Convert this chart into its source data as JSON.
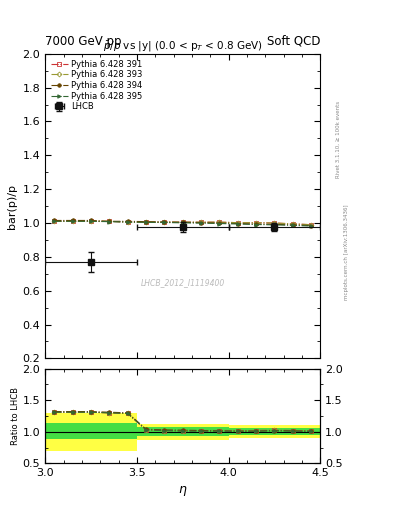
{
  "title_left": "7000 GeV pp",
  "title_right": "Soft QCD",
  "plot_title": "$\\bar{p}/p$ vs |y| (0.0 < p$_{T}$ < 0.8 GeV)",
  "ylabel_main": "bar(p)/p",
  "ylabel_ratio": "Ratio to LHCB",
  "xlabel": "$\\eta$",
  "right_label_top": "Rivet 3.1.10, ≥ 100k events",
  "right_label_bottom": "mcplots.cern.ch [arXiv:1306.3436]",
  "watermark": "LHCB_2012_I1119400",
  "xlim": [
    3.0,
    4.5
  ],
  "ylim_main": [
    0.2,
    2.0
  ],
  "ylim_ratio": [
    0.5,
    2.0
  ],
  "lhcb_data": {
    "x": [
      3.25,
      3.75,
      4.25
    ],
    "y": [
      0.77,
      0.975,
      0.975
    ],
    "xerr": [
      0.25,
      0.25,
      0.25
    ],
    "yerr": [
      0.06,
      0.03,
      0.025
    ],
    "color": "#111111",
    "label": "LHCB"
  },
  "pythia_lines": [
    {
      "label": "Pythia 6.428 391",
      "color": "#cc3333",
      "linestyle": "-.",
      "marker": "s",
      "markerfacecolor": "none",
      "x": [
        3.05,
        3.15,
        3.25,
        3.35,
        3.45,
        3.55,
        3.65,
        3.75,
        3.85,
        3.95,
        4.05,
        4.15,
        4.25,
        4.35,
        4.45
      ],
      "y": [
        1.01,
        1.01,
        1.01,
        1.01,
        1.005,
        1.005,
        1.005,
        1.005,
        1.005,
        1.005,
        1.002,
        1.002,
        1.0,
        0.995,
        0.99
      ]
    },
    {
      "label": "Pythia 6.428 393",
      "color": "#999933",
      "linestyle": "-.",
      "marker": "D",
      "markerfacecolor": "none",
      "x": [
        3.05,
        3.15,
        3.25,
        3.35,
        3.45,
        3.55,
        3.65,
        3.75,
        3.85,
        3.95,
        4.05,
        4.15,
        4.25,
        4.35,
        4.45
      ],
      "y": [
        1.01,
        1.01,
        1.01,
        1.01,
        1.005,
        1.005,
        1.005,
        1.005,
        1.005,
        1.005,
        1.002,
        1.002,
        1.0,
        0.995,
        0.99
      ]
    },
    {
      "label": "Pythia 6.428 394",
      "color": "#664400",
      "linestyle": "-.",
      "marker": "o",
      "markerfacecolor": "#664400",
      "x": [
        3.05,
        3.15,
        3.25,
        3.35,
        3.45,
        3.55,
        3.65,
        3.75,
        3.85,
        3.95,
        4.05,
        4.15,
        4.25,
        4.35,
        4.45
      ],
      "y": [
        1.015,
        1.015,
        1.015,
        1.01,
        1.01,
        1.008,
        1.006,
        1.004,
        1.002,
        1.0,
        0.997,
        0.994,
        0.992,
        0.989,
        0.985
      ]
    },
    {
      "label": "Pythia 6.428 395",
      "color": "#336633",
      "linestyle": "-.",
      "marker": ">",
      "markerfacecolor": "#336633",
      "x": [
        3.05,
        3.15,
        3.25,
        3.35,
        3.45,
        3.55,
        3.65,
        3.75,
        3.85,
        3.95,
        4.05,
        4.15,
        4.25,
        4.35,
        4.45
      ],
      "y": [
        1.01,
        1.01,
        1.01,
        1.008,
        1.005,
        1.004,
        1.003,
        1.001,
        0.999,
        0.997,
        0.994,
        0.991,
        0.989,
        0.986,
        0.982
      ]
    }
  ],
  "ratio_bands": [
    {
      "xmin": 3.0,
      "xmax": 3.5,
      "green_low": 0.88,
      "green_high": 1.14,
      "yellow_low": 0.7,
      "yellow_high": 1.3
    },
    {
      "xmin": 3.5,
      "xmax": 4.0,
      "green_low": 0.93,
      "green_high": 1.07,
      "yellow_low": 0.87,
      "yellow_high": 1.13
    },
    {
      "xmin": 4.0,
      "xmax": 4.5,
      "green_low": 0.95,
      "green_high": 1.06,
      "yellow_low": 0.9,
      "yellow_high": 1.11
    }
  ],
  "ratio_pythia": [
    {
      "color": "#cc3333",
      "linestyle": "-.",
      "marker": "s",
      "markerfacecolor": "none",
      "x": [
        3.05,
        3.15,
        3.25,
        3.35,
        3.45,
        3.55,
        3.65,
        3.75,
        3.85,
        3.95,
        4.05,
        4.15,
        4.25,
        4.35,
        4.45
      ],
      "y": [
        1.31,
        1.31,
        1.31,
        1.3,
        1.29,
        1.03,
        1.02,
        1.02,
        1.02,
        1.02,
        1.02,
        1.02,
        1.025,
        1.02,
        1.015
      ]
    },
    {
      "color": "#999933",
      "linestyle": "-.",
      "marker": "D",
      "markerfacecolor": "none",
      "x": [
        3.05,
        3.15,
        3.25,
        3.35,
        3.45,
        3.55,
        3.65,
        3.75,
        3.85,
        3.95,
        4.05,
        4.15,
        4.25,
        4.35,
        4.45
      ],
      "y": [
        1.31,
        1.31,
        1.31,
        1.3,
        1.29,
        1.03,
        1.02,
        1.02,
        1.02,
        1.02,
        1.02,
        1.02,
        1.025,
        1.02,
        1.015
      ]
    },
    {
      "color": "#664400",
      "linestyle": "-.",
      "marker": "o",
      "markerfacecolor": "#664400",
      "x": [
        3.05,
        3.15,
        3.25,
        3.35,
        3.45,
        3.55,
        3.65,
        3.75,
        3.85,
        3.95,
        4.05,
        4.15,
        4.25,
        4.35,
        4.45
      ],
      "y": [
        1.32,
        1.32,
        1.32,
        1.31,
        1.3,
        1.04,
        1.03,
        1.025,
        1.02,
        1.015,
        1.01,
        1.01,
        1.02,
        1.015,
        1.01
      ]
    },
    {
      "color": "#336633",
      "linestyle": "-.",
      "marker": ">",
      "markerfacecolor": "#336633",
      "x": [
        3.05,
        3.15,
        3.25,
        3.35,
        3.45,
        3.55,
        3.65,
        3.75,
        3.85,
        3.95,
        4.05,
        4.15,
        4.25,
        4.35,
        4.45
      ],
      "y": [
        1.31,
        1.31,
        1.31,
        1.3,
        1.29,
        1.03,
        1.02,
        1.01,
        1.01,
        1.01,
        1.01,
        1.01,
        1.015,
        1.01,
        1.005
      ]
    }
  ]
}
